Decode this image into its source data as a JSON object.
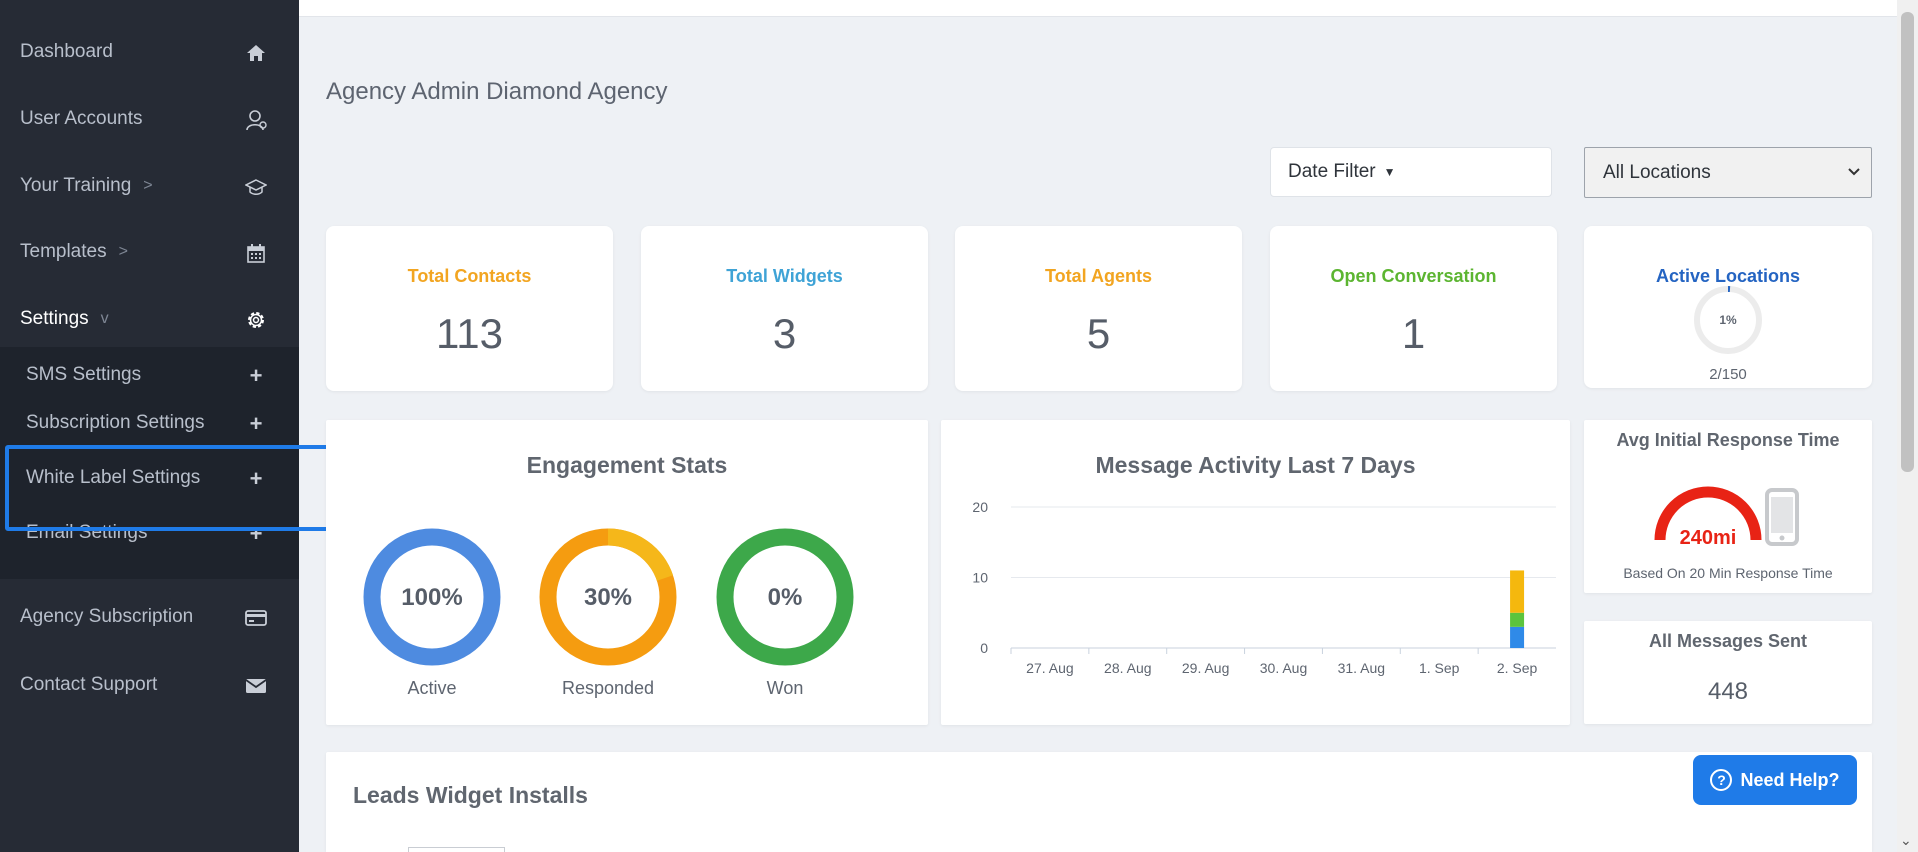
{
  "sidebar": {
    "items": [
      {
        "label": "Dashboard",
        "icon": "home-icon"
      },
      {
        "label": "User Accounts",
        "icon": "user-icon"
      },
      {
        "label": "Your Training",
        "icon": "graduation-cap-icon",
        "chevron": ">"
      },
      {
        "label": "Templates",
        "icon": "calendar-icon",
        "chevron": ">"
      },
      {
        "label": "Settings",
        "icon": "gear-icon",
        "chevron": "v"
      },
      {
        "label": "Agency Subscription",
        "icon": "credit-card-icon"
      },
      {
        "label": "Contact Support",
        "icon": "envelope-icon"
      }
    ],
    "settings_submenu": [
      "SMS Settings",
      "Subscription Settings",
      "White Label Settings",
      "Email Settings"
    ],
    "plus_symbol": "+",
    "highlighted_item": "White Label Settings",
    "highlight_color": "#1f7be8"
  },
  "page": {
    "title": "Agency Admin Diamond Agency"
  },
  "filters": {
    "date_filter_label": "Date Filter",
    "locations_value": "All Locations"
  },
  "stats": [
    {
      "title": "Total Contacts",
      "value": "113",
      "color": "#f2a521"
    },
    {
      "title": "Total Widgets",
      "value": "3",
      "color": "#3fa3d6"
    },
    {
      "title": "Total Agents",
      "value": "5",
      "color": "#f2a521"
    },
    {
      "title": "Open Conversation",
      "value": "1",
      "color": "#5cb531"
    }
  ],
  "active_locations": {
    "title": "Active Locations",
    "percent_label": "1%",
    "percent": 0.01,
    "count": "2/150",
    "color": "#2464c2"
  },
  "engagement": {
    "title": "Engagement Stats",
    "donuts": [
      {
        "label": "Active",
        "value_label": "100%",
        "color": "#4e8be0"
      },
      {
        "label": "Responded",
        "value_label": "30%",
        "color": "#f59c10",
        "accent": "#f5b71a"
      },
      {
        "label": "Won",
        "value_label": "0%",
        "color": "#3da84a"
      }
    ]
  },
  "message_activity": {
    "title": "Message Activity Last 7 Days"
  },
  "chart_data": {
    "type": "bar",
    "title": "Message Activity Last 7 Days",
    "categories": [
      "27. Aug",
      "28. Aug",
      "29. Aug",
      "30. Aug",
      "31. Aug",
      "1. Sep",
      "2. Sep"
    ],
    "yticks": [
      0,
      10,
      20
    ],
    "ylim": [
      0,
      20
    ],
    "stacked": true,
    "series": [
      {
        "color": "#2f8ae8",
        "values": [
          0,
          0,
          0,
          0,
          0,
          0,
          3
        ]
      },
      {
        "color": "#5cc43d",
        "values": [
          0,
          0,
          0,
          0,
          0,
          0,
          2
        ]
      },
      {
        "color": "#f5b80e",
        "values": [
          0,
          0,
          0,
          0,
          0,
          0,
          6
        ]
      }
    ]
  },
  "response_time": {
    "title": "Avg Initial Response Time",
    "value_label": "240mi",
    "note": "Based On 20 Min Response Time",
    "gauge_color": "#e82315"
  },
  "messages_sent": {
    "title": "All Messages Sent",
    "value": "448"
  },
  "leads": {
    "title": "Leads Widget Installs"
  },
  "help": {
    "label": "Need Help?",
    "q": "?"
  },
  "scroll": {
    "down_arrow": "⌄"
  }
}
